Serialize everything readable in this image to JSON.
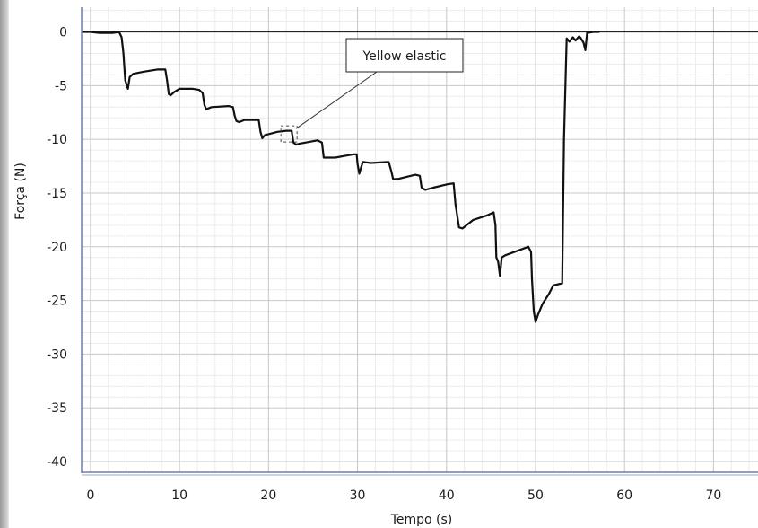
{
  "chart_data": {
    "type": "line",
    "title": "",
    "xlabel": "Tempo (s)",
    "ylabel": "Força (N)",
    "xlim": [
      -1,
      75
    ],
    "ylim": [
      -41,
      2.3
    ],
    "xticks": [
      0,
      10,
      20,
      30,
      40,
      50,
      60,
      70
    ],
    "yticks": [
      0,
      -5,
      -10,
      -15,
      -20,
      -25,
      -30,
      -35,
      -40
    ],
    "xtick_labels": [
      "0",
      "10",
      "20",
      "30",
      "40",
      "50",
      "60",
      "70"
    ],
    "ytick_labels": [
      "0",
      "-5",
      "-10",
      "-15",
      "-20",
      "-25",
      "-30",
      "-35",
      "-40"
    ],
    "grid": true,
    "annotation": {
      "text": "Yellow elastic",
      "x": 22.3,
      "y": -9.5
    },
    "series": [
      {
        "color": "#111111",
        "points": [
          [
            -1,
            0
          ],
          [
            0,
            0
          ],
          [
            1,
            -0.1
          ],
          [
            2.5,
            -0.1
          ],
          [
            3.2,
            0
          ],
          [
            3.5,
            -0.5
          ],
          [
            3.7,
            -2
          ],
          [
            3.9,
            -4.5
          ],
          [
            4.05,
            -4.9
          ],
          [
            4.2,
            -5.3
          ],
          [
            4.4,
            -4.2
          ],
          [
            4.8,
            -3.9
          ],
          [
            6,
            -3.7
          ],
          [
            7.5,
            -3.5
          ],
          [
            8.4,
            -3.5
          ],
          [
            8.6,
            -4.5
          ],
          [
            8.8,
            -5.8
          ],
          [
            9,
            -5.9
          ],
          [
            9.4,
            -5.6
          ],
          [
            10,
            -5.3
          ],
          [
            11.5,
            -5.3
          ],
          [
            12.2,
            -5.4
          ],
          [
            12.6,
            -5.7
          ],
          [
            12.8,
            -6.8
          ],
          [
            13,
            -7.2
          ],
          [
            13.6,
            -7.0
          ],
          [
            15.5,
            -6.9
          ],
          [
            16,
            -7.0
          ],
          [
            16.2,
            -7.8
          ],
          [
            16.4,
            -8.3
          ],
          [
            16.7,
            -8.4
          ],
          [
            17.3,
            -8.2
          ],
          [
            18.9,
            -8.2
          ],
          [
            19.1,
            -9.3
          ],
          [
            19.3,
            -9.9
          ],
          [
            19.6,
            -9.6
          ],
          [
            20.1,
            -9.5
          ],
          [
            21,
            -9.3
          ],
          [
            22,
            -9.2
          ],
          [
            22.6,
            -9.2
          ],
          [
            22.8,
            -10.3
          ],
          [
            23.1,
            -10.5
          ],
          [
            23.5,
            -10.4
          ],
          [
            25.5,
            -10.1
          ],
          [
            26,
            -10.3
          ],
          [
            26.2,
            -11.7
          ],
          [
            27.5,
            -11.7
          ],
          [
            29.5,
            -11.4
          ],
          [
            29.9,
            -11.4
          ],
          [
            30,
            -12.3
          ],
          [
            30.2,
            -13.2
          ],
          [
            30.3,
            -12.9
          ],
          [
            30.6,
            -12.1
          ],
          [
            31.5,
            -12.2
          ],
          [
            33.5,
            -12.1
          ],
          [
            33.8,
            -13.0
          ],
          [
            34.0,
            -13.7
          ],
          [
            34.5,
            -13.7
          ],
          [
            36.5,
            -13.3
          ],
          [
            37.0,
            -13.4
          ],
          [
            37.2,
            -14.5
          ],
          [
            37.6,
            -14.7
          ],
          [
            38.5,
            -14.5
          ],
          [
            40,
            -14.2
          ],
          [
            40.8,
            -14.1
          ],
          [
            41.0,
            -16
          ],
          [
            41.4,
            -18.2
          ],
          [
            41.8,
            -18.3
          ],
          [
            43,
            -17.5
          ],
          [
            44.5,
            -17.1
          ],
          [
            45.3,
            -16.8
          ],
          [
            45.5,
            -18
          ],
          [
            45.6,
            -21
          ],
          [
            45.8,
            -21.4
          ],
          [
            46.0,
            -22.7
          ],
          [
            46.2,
            -21.0
          ],
          [
            46.6,
            -20.8
          ],
          [
            49.2,
            -20.0
          ],
          [
            49.5,
            -20.5
          ],
          [
            49.6,
            -23
          ],
          [
            49.8,
            -26
          ],
          [
            50.0,
            -27.0
          ],
          [
            50.3,
            -26.3
          ],
          [
            50.8,
            -25.3
          ],
          [
            51.5,
            -24.4
          ],
          [
            52.0,
            -23.6
          ],
          [
            53.0,
            -23.4
          ],
          [
            53.2,
            -10
          ],
          [
            53.5,
            -0.6
          ],
          [
            53.8,
            -0.9
          ],
          [
            54.2,
            -0.5
          ],
          [
            54.5,
            -0.8
          ],
          [
            54.9,
            -0.4
          ],
          [
            55.1,
            -0.6
          ],
          [
            55.4,
            -1.0
          ],
          [
            55.6,
            -1.7
          ],
          [
            55.8,
            -0.1
          ],
          [
            56.5,
            0
          ],
          [
            57.2,
            0
          ]
        ]
      }
    ]
  }
}
